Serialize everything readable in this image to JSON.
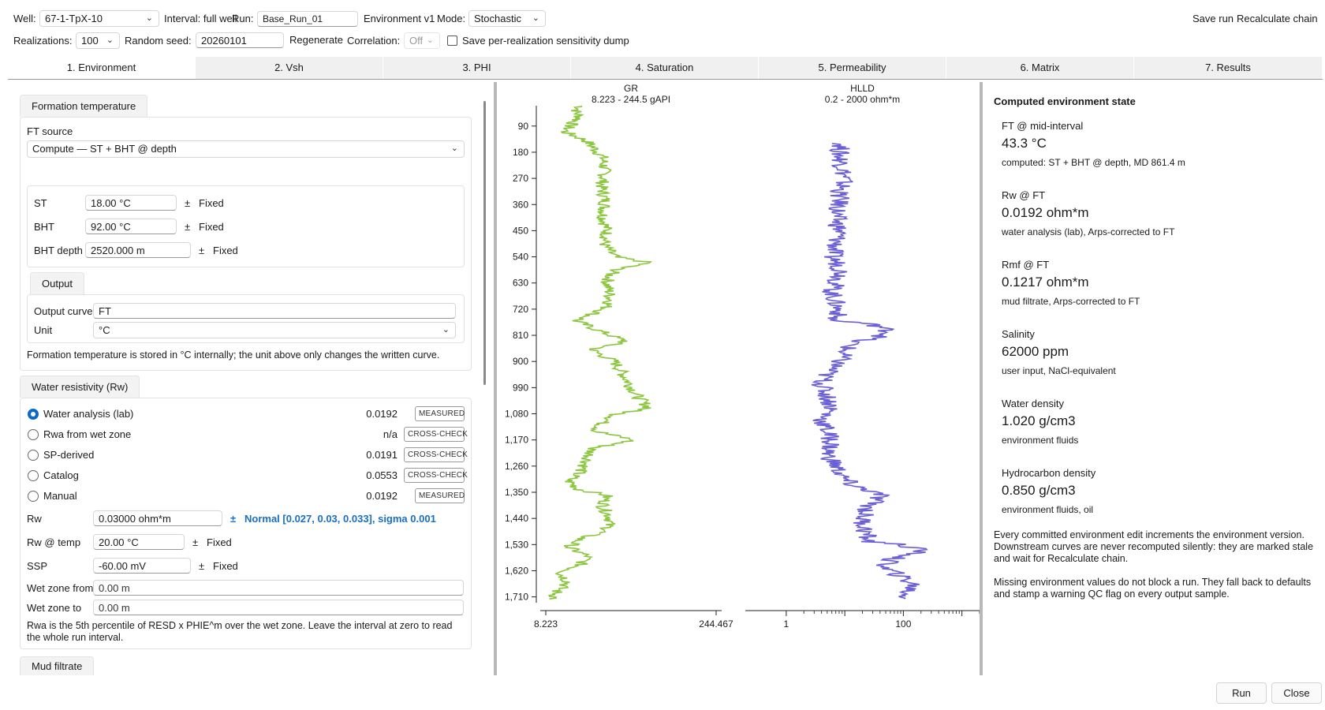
{
  "header": {
    "well_label": "Well:",
    "well_value": "67-1-TpX-10",
    "interval_label": "Interval: full well",
    "run_label": "Run:",
    "run_value": "Base_Run_01",
    "env_label": "Environment v1",
    "mode_label": "Mode:",
    "mode_value": "Stochastic",
    "save_run": "Save run",
    "recalc_chain": "Recalculate chain",
    "realizations_label": "Realizations:",
    "realizations_value": "100",
    "seed_label": "Random seed:",
    "seed_value": "20260101",
    "regenerate": "Regenerate",
    "correlation_label": "Correlation:",
    "correlation_value": "Off",
    "dump_label": "Save per-realization sensitivity dump"
  },
  "tabs": [
    {
      "label": "1. Environment",
      "active": true
    },
    {
      "label": "2. Vsh"
    },
    {
      "label": "3. PHI"
    },
    {
      "label": "4. Saturation"
    },
    {
      "label": "5. Permeability"
    },
    {
      "label": "6. Matrix"
    },
    {
      "label": "7. Results"
    }
  ],
  "formation_temperature": {
    "title": "Formation temperature",
    "source_label": "FT source",
    "source_value": "Compute — ST + BHT @ depth",
    "params": [
      {
        "label": "ST",
        "value": "18.00 °C",
        "pm": "±",
        "dist": "Fixed"
      },
      {
        "label": "BHT",
        "value": "92.00 °C",
        "pm": "±",
        "dist": "Fixed"
      },
      {
        "label": "BHT depth",
        "value": "2520.000 m",
        "pm": "±",
        "dist": "Fixed"
      }
    ],
    "output_title": "Output",
    "output_curve_label": "Output curve",
    "output_curve_value": "FT",
    "unit_label": "Unit",
    "unit_value": "°C",
    "note": "Formation temperature is stored in °C internally; the unit above only changes the written curve."
  },
  "water_resistivity": {
    "title": "Water resistivity (Rw)",
    "options": [
      {
        "label": "Water analysis (lab)",
        "value": "0.0192",
        "badge": "MEASURED",
        "selected": true
      },
      {
        "label": "Rwa from wet zone",
        "value": "n/a",
        "badge": "CROSS-CHECK"
      },
      {
        "label": "SP-derived",
        "value": "0.0191",
        "badge": "CROSS-CHECK"
      },
      {
        "label": "Catalog",
        "value": "0.0553",
        "badge": "CROSS-CHECK"
      },
      {
        "label": "Manual",
        "value": "0.0192",
        "badge": "MEASURED"
      }
    ],
    "rw_label": "Rw",
    "rw_value": "0.03000 ohm*m",
    "rw_pm": "±",
    "rw_dist": "Normal [0.027, 0.03, 0.033], sigma 0.001",
    "rw_temp_label": "Rw @ temp",
    "rw_temp_value": "20.00 °C",
    "rw_temp_pm": "±",
    "rw_temp_dist": "Fixed",
    "ssp_label": "SSP",
    "ssp_value": "-60.00 mV",
    "ssp_pm": "±",
    "ssp_dist": "Fixed",
    "wet_from_label": "Wet zone from",
    "wet_from_value": "0.00 m",
    "wet_to_label": "Wet zone to",
    "wet_to_value": "0.00 m",
    "note": "Rwa is the 5th percentile of RESD x PHIE^m over the wet zone. Leave the interval at zero to read the whole run interval."
  },
  "mud_filtrate": {
    "title": "Mud filtrate"
  },
  "computed_state": {
    "title": "Computed environment state",
    "items": [
      {
        "label": "FT @ mid-interval",
        "value": "43.3 °C",
        "note": "computed: ST + BHT @ depth, MD 861.4 m"
      },
      {
        "label": "Rw @ FT",
        "value": "0.0192 ohm*m",
        "note": "water analysis (lab), Arps-corrected to FT"
      },
      {
        "label": "Rmf @ FT",
        "value": "0.1217 ohm*m",
        "note": "mud filtrate, Arps-corrected to FT"
      },
      {
        "label": "Salinity",
        "value": "62000 ppm",
        "note": "user input, NaCl-equivalent"
      },
      {
        "label": "Water density",
        "value": "1.020 g/cm3",
        "note": "environment fluids"
      },
      {
        "label": "Hydrocarbon density",
        "value": "0.850 g/cm3",
        "note": "environment fluids, oil"
      }
    ],
    "footer1": "Every committed environment edit increments the environment version. Downstream curves are never recomputed silently: they are marked stale and wait for Recalculate chain.",
    "footer2": "Missing environment values do not block a run. They fall back to defaults and stamp a warning QC flag on every output sample."
  },
  "footer": {
    "run": "Run",
    "close": "Close"
  },
  "colors": {
    "gr": "#8cc63f",
    "hlld": "#6b5fd6",
    "accent": "#0b69c7"
  },
  "chart_data": {
    "type": "line",
    "depth_ticks": [
      90,
      180,
      270,
      360,
      450,
      540,
      630,
      720,
      810,
      900,
      990,
      1080,
      1170,
      1260,
      1350,
      1440,
      1530,
      1620,
      1710
    ],
    "depth_tick_labels": [
      "90",
      "180",
      "270",
      "360",
      "450",
      "540",
      "630",
      "720",
      "810",
      "900",
      "990",
      "1,080",
      "1,170",
      "1,260",
      "1,350",
      "1,440",
      "1,530",
      "1,620",
      "1,710"
    ],
    "depth_range": [
      20,
      1730
    ],
    "tracks": [
      {
        "name": "GR",
        "range_label": "8.223 - 244.5 gAPI",
        "scale": "linear",
        "xlim": [
          8.223,
          244.467
        ],
        "x_tick_labels": [
          "8.223",
          "244.467"
        ],
        "depth": [
          20,
          40,
          60,
          80,
          110,
          140,
          170,
          200,
          250,
          300,
          350,
          400,
          450,
          500,
          540,
          560,
          580,
          600,
          630,
          660,
          690,
          720,
          760,
          800,
          830,
          860,
          900,
          940,
          980,
          1020,
          1060,
          1080,
          1110,
          1140,
          1170,
          1200,
          1240,
          1280,
          1310,
          1340,
          1360,
          1400,
          1440,
          1480,
          1510,
          1540,
          1570,
          1600,
          1630,
          1660,
          1690,
          1720
        ],
        "values": [
          62,
          55,
          60,
          50,
          40,
          68,
          80,
          90,
          92,
          88,
          93,
          90,
          95,
          92,
          105,
          150,
          110,
          100,
          95,
          98,
          100,
          92,
          55,
          90,
          120,
          75,
          105,
          115,
          125,
          135,
          150,
          110,
          90,
          80,
          130,
          75,
          70,
          60,
          45,
          58,
          95,
          90,
          100,
          95,
          60,
          45,
          70,
          60,
          35,
          45,
          30,
          25
        ]
      },
      {
        "name": "HLLD",
        "range_label": "0.2 - 2000 ohm*m",
        "scale": "log",
        "xlim": [
          0.2,
          2000
        ],
        "x_tick_labels": [
          "1",
          "100"
        ],
        "depth": [
          150,
          180,
          220,
          270,
          320,
          360,
          400,
          450,
          500,
          540,
          570,
          600,
          630,
          660,
          700,
          730,
          760,
          780,
          800,
          830,
          860,
          900,
          940,
          980,
          1020,
          1060,
          1100,
          1140,
          1180,
          1220,
          1260,
          1300,
          1330,
          1360,
          1400,
          1440,
          1480,
          1520,
          1550,
          1580,
          1610,
          1640,
          1670,
          1700,
          1720
        ],
        "values": [
          9,
          8,
          9,
          10,
          8,
          8,
          7,
          8,
          7,
          6,
          8,
          9,
          7,
          6,
          7,
          8,
          6,
          40,
          60,
          15,
          10,
          8,
          5,
          4,
          5,
          6,
          4,
          5,
          6,
          5,
          7,
          9,
          14,
          40,
          25,
          20,
          22,
          25,
          200,
          60,
          45,
          90,
          150,
          110,
          120
        ]
      }
    ]
  }
}
